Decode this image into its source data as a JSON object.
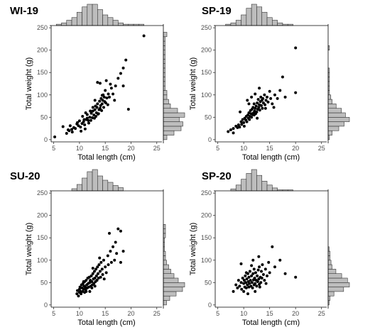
{
  "chart_data": [
    {
      "type": "scatter",
      "panel_label": "WI-19",
      "xlabel": "Total length (cm)",
      "ylabel": "Total weight (g)",
      "xlim": [
        4.5,
        26
      ],
      "ylim": [
        -5,
        255
      ],
      "x_ticks": [
        5,
        10,
        15,
        20,
        25
      ],
      "y_ticks": [
        0,
        50,
        100,
        150,
        200,
        250
      ],
      "grid": false,
      "marginal_histograms": true,
      "hist_x": {
        "start": 4.5,
        "width": 1,
        "counts": [
          0,
          1,
          2,
          4,
          6,
          10,
          14,
          16,
          16,
          12,
          8,
          6,
          4,
          2,
          1,
          1,
          1,
          1,
          0
        ]
      },
      "hist_y": {
        "start": 0,
        "width": 10,
        "counts": [
          2,
          6,
          10,
          11,
          9,
          12,
          8,
          4,
          3,
          2,
          2,
          1,
          1,
          1,
          1,
          1,
          1,
          1,
          1,
          1,
          1,
          1,
          1,
          2
        ]
      },
      "points": [
        [
          5.2,
          6
        ],
        [
          6.8,
          29
        ],
        [
          7.5,
          14
        ],
        [
          7.8,
          22
        ],
        [
          8,
          20
        ],
        [
          8.2,
          31
        ],
        [
          8.5,
          23
        ],
        [
          8.6,
          17
        ],
        [
          8.9,
          27
        ],
        [
          9.2,
          25
        ],
        [
          9.5,
          35
        ],
        [
          9.8,
          31
        ],
        [
          10,
          42
        ],
        [
          10.2,
          28
        ],
        [
          10.3,
          19
        ],
        [
          10.5,
          36
        ],
        [
          10.8,
          40
        ],
        [
          10.9,
          45
        ],
        [
          11,
          33
        ],
        [
          11.1,
          24
        ],
        [
          11.3,
          45
        ],
        [
          11.5,
          48
        ],
        [
          11.5,
          56
        ],
        [
          11.8,
          37
        ],
        [
          12,
          50
        ],
        [
          12.2,
          43
        ],
        [
          12.3,
          59
        ],
        [
          12.5,
          49
        ],
        [
          12.6,
          64
        ],
        [
          12.8,
          55
        ],
        [
          12.9,
          48
        ],
        [
          13,
          67
        ],
        [
          13.1,
          75
        ],
        [
          13.3,
          60
        ],
        [
          13.4,
          72
        ],
        [
          13.5,
          80
        ],
        [
          13.6,
          57
        ],
        [
          13.8,
          67
        ],
        [
          13.9,
          86
        ],
        [
          14,
          70
        ],
        [
          14.1,
          76
        ],
        [
          14.2,
          92
        ],
        [
          14.3,
          65
        ],
        [
          14.4,
          80
        ],
        [
          14.5,
          88
        ],
        [
          14.6,
          100
        ],
        [
          14.7,
          72
        ],
        [
          14.8,
          95
        ],
        [
          15,
          110
        ],
        [
          15.1,
          82
        ],
        [
          15.3,
          93
        ],
        [
          15.5,
          78
        ],
        [
          15.6,
          102
        ],
        [
          15.8,
          95
        ],
        [
          16,
          124
        ],
        [
          16.2,
          115
        ],
        [
          16.5,
          102
        ],
        [
          17,
          120
        ],
        [
          17.5,
          137
        ],
        [
          18,
          148
        ],
        [
          18.5,
          120
        ],
        [
          18.5,
          160
        ],
        [
          19,
          178
        ],
        [
          19.5,
          68
        ],
        [
          22.5,
          232
        ],
        [
          13.5,
          128
        ],
        [
          14,
          126
        ],
        [
          12.6,
          72
        ],
        [
          11.2,
          60
        ],
        [
          10.6,
          52
        ],
        [
          9.6,
          38
        ],
        [
          13.2,
          52
        ],
        [
          13.7,
          58
        ],
        [
          14.9,
          85
        ],
        [
          15.2,
          132
        ],
        [
          16.8,
          88
        ],
        [
          12.1,
          64
        ],
        [
          11.7,
          43
        ],
        [
          14.4,
          99
        ],
        [
          13,
          88
        ]
      ]
    },
    {
      "type": "scatter",
      "panel_label": "SP-19",
      "xlabel": "Total length (cm)",
      "ylabel": "Total weight (g)",
      "xlim": [
        4.5,
        26
      ],
      "ylim": [
        -5,
        255
      ],
      "x_ticks": [
        5,
        10,
        15,
        20,
        25
      ],
      "y_ticks": [
        0,
        50,
        100,
        150,
        200,
        250
      ],
      "grid": false,
      "marginal_histograms": true,
      "hist_x": {
        "start": 6.5,
        "width": 1,
        "counts": [
          1,
          2,
          4,
          8,
          13,
          16,
          14,
          10,
          6,
          4,
          2,
          1,
          1,
          0
        ]
      },
      "hist_y": {
        "start": 0,
        "width": 10,
        "counts": [
          1,
          3,
          8,
          12,
          16,
          13,
          10,
          6,
          3,
          2,
          1,
          1,
          1,
          1,
          1,
          1,
          0,
          0,
          0,
          0,
          1
        ]
      },
      "points": [
        [
          7,
          18
        ],
        [
          7.5,
          22
        ],
        [
          8,
          15
        ],
        [
          8,
          25
        ],
        [
          8.5,
          30
        ],
        [
          8.8,
          27
        ],
        [
          9,
          33
        ],
        [
          9.2,
          28
        ],
        [
          9.5,
          40
        ],
        [
          9.6,
          34
        ],
        [
          9.8,
          45
        ],
        [
          10,
          38
        ],
        [
          10.1,
          30
        ],
        [
          10.2,
          48
        ],
        [
          10.4,
          44
        ],
        [
          10.5,
          52
        ],
        [
          10.6,
          40
        ],
        [
          10.8,
          55
        ],
        [
          10.9,
          48
        ],
        [
          11,
          60
        ],
        [
          11.1,
          45
        ],
        [
          11.2,
          52
        ],
        [
          11.3,
          65
        ],
        [
          11.4,
          58
        ],
        [
          11.5,
          50
        ],
        [
          11.6,
          68
        ],
        [
          11.7,
          56
        ],
        [
          11.8,
          72
        ],
        [
          11.9,
          60
        ],
        [
          12,
          55
        ],
        [
          12,
          80
        ],
        [
          12.1,
          64
        ],
        [
          12.2,
          70
        ],
        [
          12.3,
          58
        ],
        [
          12.4,
          75
        ],
        [
          12.5,
          62
        ],
        [
          12.6,
          82
        ],
        [
          12.7,
          68
        ],
        [
          12.8,
          90
        ],
        [
          12.9,
          72
        ],
        [
          13,
          78
        ],
        [
          13.1,
          66
        ],
        [
          13.2,
          85
        ],
        [
          13.3,
          95
        ],
        [
          13.4,
          76
        ],
        [
          13.5,
          88
        ],
        [
          13.6,
          70
        ],
        [
          13.7,
          92
        ],
        [
          13.8,
          82
        ],
        [
          14,
          100
        ],
        [
          14.1,
          78
        ],
        [
          14.3,
          88
        ],
        [
          14.5,
          95
        ],
        [
          14.7,
          84
        ],
        [
          15,
          108
        ],
        [
          15.2,
          92
        ],
        [
          15.5,
          80
        ],
        [
          16,
          100
        ],
        [
          16.5,
          92
        ],
        [
          17,
          110
        ],
        [
          17.5,
          140
        ],
        [
          18,
          95
        ],
        [
          20,
          205
        ],
        [
          20,
          105
        ],
        [
          11.5,
          95
        ],
        [
          10.7,
          88
        ],
        [
          12.2,
          102
        ],
        [
          13,
          115
        ],
        [
          11,
          80
        ],
        [
          9.3,
          62
        ],
        [
          12.6,
          48
        ],
        [
          14.2,
          70
        ],
        [
          15.8,
          72
        ]
      ]
    },
    {
      "type": "scatter",
      "panel_label": "SU-20",
      "xlabel": "Total length (cm)",
      "ylabel": "Total weight (g)",
      "xlim": [
        4.5,
        26
      ],
      "ylim": [
        -5,
        255
      ],
      "x_ticks": [
        5,
        10,
        15,
        20,
        25
      ],
      "y_ticks": [
        0,
        50,
        100,
        150,
        200,
        250
      ],
      "grid": false,
      "marginal_histograms": true,
      "hist_x": {
        "start": 8.5,
        "width": 1,
        "counts": [
          2,
          6,
          12,
          18,
          20,
          14,
          10,
          8,
          5,
          3,
          0
        ]
      },
      "hist_y": {
        "start": 0,
        "width": 10,
        "counts": [
          3,
          6,
          12,
          18,
          20,
          14,
          10,
          7,
          5,
          3,
          2,
          2,
          1,
          1,
          1,
          2,
          2,
          2
        ]
      },
      "points": [
        [
          9.5,
          25
        ],
        [
          9.6,
          32
        ],
        [
          9.8,
          20
        ],
        [
          10,
          35
        ],
        [
          10,
          28
        ],
        [
          10.1,
          40
        ],
        [
          10.2,
          30
        ],
        [
          10.3,
          25
        ],
        [
          10.4,
          45
        ],
        [
          10.5,
          38
        ],
        [
          10.6,
          30
        ],
        [
          10.7,
          48
        ],
        [
          10.8,
          35
        ],
        [
          10.9,
          42
        ],
        [
          11,
          28
        ],
        [
          11,
          52
        ],
        [
          11.1,
          40
        ],
        [
          11.2,
          34
        ],
        [
          11.3,
          55
        ],
        [
          11.4,
          45
        ],
        [
          11.5,
          38
        ],
        [
          11.6,
          60
        ],
        [
          11.7,
          48
        ],
        [
          11.8,
          40
        ],
        [
          11.9,
          62
        ],
        [
          12,
          50
        ],
        [
          12,
          30
        ],
        [
          12.1,
          55
        ],
        [
          12.2,
          42
        ],
        [
          12.3,
          65
        ],
        [
          12.4,
          52
        ],
        [
          12.5,
          45
        ],
        [
          12.6,
          70
        ],
        [
          12.7,
          58
        ],
        [
          12.8,
          48
        ],
        [
          12.9,
          75
        ],
        [
          13,
          60
        ],
        [
          13.1,
          52
        ],
        [
          13.2,
          80
        ],
        [
          13.3,
          65
        ],
        [
          13.4,
          55
        ],
        [
          13.5,
          85
        ],
        [
          13.6,
          70
        ],
        [
          13.7,
          60
        ],
        [
          13.8,
          90
        ],
        [
          14,
          75
        ],
        [
          14.1,
          62
        ],
        [
          14.2,
          95
        ],
        [
          14.4,
          80
        ],
        [
          14.5,
          68
        ],
        [
          14.7,
          100
        ],
        [
          15,
          85
        ],
        [
          15.2,
          72
        ],
        [
          15.5,
          110
        ],
        [
          15.6,
          90
        ],
        [
          15.8,
          160
        ],
        [
          16,
          120
        ],
        [
          16.2,
          95
        ],
        [
          16.5,
          130
        ],
        [
          16.8,
          100
        ],
        [
          17,
          140
        ],
        [
          17.2,
          115
        ],
        [
          17.5,
          170
        ],
        [
          18,
          165
        ],
        [
          18.5,
          120
        ],
        [
          18,
          95
        ],
        [
          13,
          42
        ],
        [
          12.4,
          38
        ],
        [
          11.3,
          30
        ],
        [
          10.8,
          52
        ],
        [
          14.8,
          58
        ],
        [
          13.9,
          105
        ],
        [
          12.6,
          82
        ]
      ]
    },
    {
      "type": "scatter",
      "panel_label": "SP-20",
      "xlabel": "Total length (cm)",
      "ylabel": "Total weight (g)",
      "xlim": [
        4.5,
        26
      ],
      "ylim": [
        -5,
        255
      ],
      "x_ticks": [
        5,
        10,
        15,
        20,
        25
      ],
      "y_ticks": [
        0,
        50,
        100,
        150,
        200,
        250
      ],
      "grid": false,
      "marginal_histograms": true,
      "hist_x": {
        "start": 7.5,
        "width": 1,
        "counts": [
          2,
          6,
          12,
          18,
          22,
          16,
          10,
          6,
          3,
          1,
          1,
          1,
          0
        ]
      },
      "hist_y": {
        "start": 0,
        "width": 10,
        "counts": [
          1,
          2,
          6,
          16,
          22,
          20,
          14,
          8,
          4,
          3,
          2,
          2,
          1,
          0,
          0
        ]
      },
      "points": [
        [
          8,
          30
        ],
        [
          8.5,
          45
        ],
        [
          8.8,
          38
        ],
        [
          9,
          55
        ],
        [
          9.2,
          42
        ],
        [
          9.5,
          50
        ],
        [
          9.6,
          35
        ],
        [
          9.8,
          60
        ],
        [
          10,
          48
        ],
        [
          10,
          30
        ],
        [
          10.1,
          55
        ],
        [
          10.2,
          40
        ],
        [
          10.3,
          65
        ],
        [
          10.4,
          50
        ],
        [
          10.5,
          38
        ],
        [
          10.6,
          58
        ],
        [
          10.7,
          45
        ],
        [
          10.8,
          70
        ],
        [
          10.9,
          52
        ],
        [
          11,
          40
        ],
        [
          11,
          62
        ],
        [
          11.1,
          48
        ],
        [
          11.2,
          75
        ],
        [
          11.3,
          55
        ],
        [
          11.4,
          42
        ],
        [
          11.5,
          65
        ],
        [
          11.6,
          50
        ],
        [
          11.7,
          38
        ],
        [
          11.8,
          70
        ],
        [
          11.9,
          56
        ],
        [
          12,
          45
        ],
        [
          12,
          80
        ],
        [
          12.1,
          60
        ],
        [
          12.2,
          48
        ],
        [
          12.3,
          72
        ],
        [
          12.4,
          55
        ],
        [
          12.5,
          42
        ],
        [
          12.6,
          65
        ],
        [
          12.7,
          52
        ],
        [
          12.8,
          78
        ],
        [
          12.9,
          58
        ],
        [
          13,
          46
        ],
        [
          13,
          85
        ],
        [
          13.2,
          62
        ],
        [
          13.3,
          50
        ],
        [
          13.4,
          75
        ],
        [
          13.5,
          60
        ],
        [
          13.6,
          90
        ],
        [
          13.8,
          68
        ],
        [
          14,
          55
        ],
        [
          14.2,
          80
        ],
        [
          14.5,
          65
        ],
        [
          14.8,
          95
        ],
        [
          15,
          72
        ],
        [
          15.5,
          130
        ],
        [
          16,
          85
        ],
        [
          17,
          100
        ],
        [
          18,
          70
        ],
        [
          20,
          62
        ],
        [
          9.5,
          92
        ],
        [
          10.8,
          25
        ],
        [
          11.5,
          88
        ],
        [
          12.2,
          30
        ],
        [
          13.1,
          40
        ],
        [
          12.9,
          108
        ],
        [
          14.3,
          48
        ],
        [
          11.8,
          100
        ],
        [
          10.5,
          72
        ]
      ]
    }
  ]
}
